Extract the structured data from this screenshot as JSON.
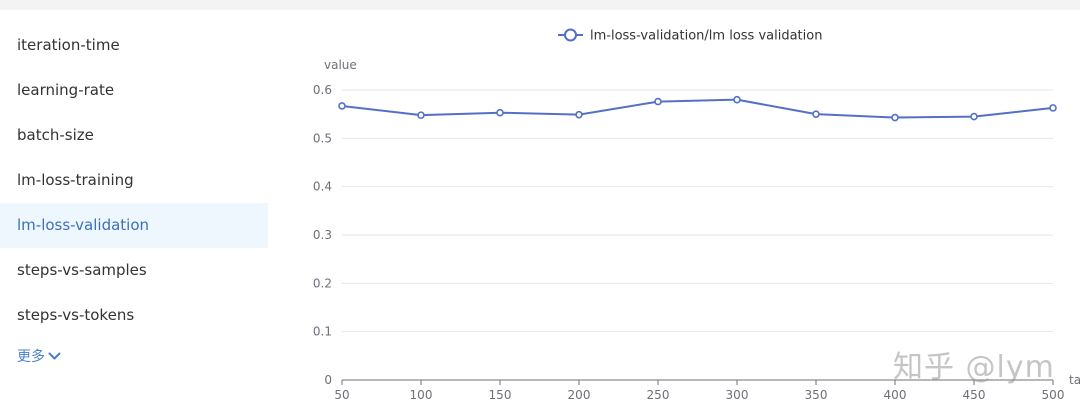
{
  "sidebar": {
    "items": [
      {
        "label": "iteration-time",
        "active": false
      },
      {
        "label": "learning-rate",
        "active": false
      },
      {
        "label": "batch-size",
        "active": false
      },
      {
        "label": "lm-loss-training",
        "active": false
      },
      {
        "label": "lm-loss-validation",
        "active": true
      },
      {
        "label": "steps-vs-samples",
        "active": false
      },
      {
        "label": "steps-vs-tokens",
        "active": false
      }
    ],
    "more_label": "更多",
    "more_icon": "chevron-down-icon"
  },
  "watermark": "知乎 @lym",
  "colors": {
    "series": "#5470c6",
    "active_text": "#3b71b8",
    "active_bg": "#eef6fe",
    "link": "#4a80c8"
  },
  "chart_data": {
    "type": "line",
    "title": "",
    "legend": [
      "lm-loss-validation/lm loss validation"
    ],
    "legend_position": "top-center",
    "ylabel": "value",
    "xlabel": "ta",
    "x": [
      50,
      100,
      150,
      200,
      250,
      300,
      350,
      400,
      450,
      500
    ],
    "series": [
      {
        "name": "lm-loss-validation/lm loss validation",
        "values": [
          0.567,
          0.548,
          0.553,
          0.549,
          0.576,
          0.58,
          0.55,
          0.543,
          0.545,
          0.563
        ]
      }
    ],
    "ylim": [
      0,
      0.6
    ],
    "yticks": [
      "0",
      "0.1",
      "0.2",
      "0.3",
      "0.4",
      "0.5",
      "0.6"
    ],
    "xticks": [
      "50",
      "100",
      "150",
      "200",
      "250",
      "300",
      "350",
      "400",
      "450",
      "500"
    ],
    "grid": true
  }
}
